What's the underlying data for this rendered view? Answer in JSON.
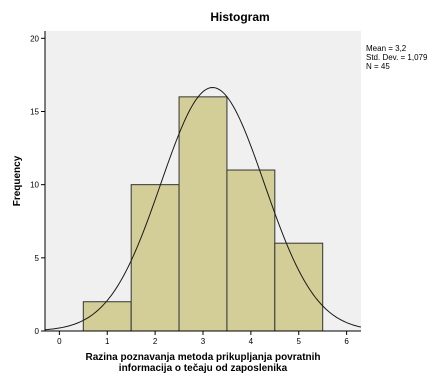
{
  "chart_data": {
    "type": "bar",
    "title": "Histogram",
    "xlabel": [
      "Razina poznavanja metoda prikupljanja povratnih",
      "informacija o tečaju od zaposlenika"
    ],
    "ylabel": "Frequency",
    "xlim": [
      -0.3,
      6.3
    ],
    "ylim": [
      0,
      20.5
    ],
    "xticks": [
      "0",
      "1",
      "2",
      "3",
      "4",
      "5",
      "6"
    ],
    "yticks": [
      "0",
      "5",
      "10",
      "15",
      "20"
    ],
    "bins": [
      {
        "from": 0.5,
        "to": 1.5,
        "value": 2
      },
      {
        "from": 1.5,
        "to": 2.5,
        "value": 10
      },
      {
        "from": 2.5,
        "to": 3.5,
        "value": 16
      },
      {
        "from": 3.5,
        "to": 4.5,
        "value": 11
      },
      {
        "from": 4.5,
        "to": 5.5,
        "value": 6
      }
    ],
    "normal_curve": {
      "mean": 3.2,
      "std": 1.079,
      "n": 45,
      "bin_width": 1
    },
    "stats": [
      "Mean = 3,2",
      "Std. Dev. = 1,079",
      "N = 45"
    ],
    "grid": false,
    "colors": {
      "plot_bg": "#f0f0f0",
      "bar_fill": "#d3ce97",
      "bar_stroke": "#333333",
      "curve": "#1a1a1a"
    }
  }
}
